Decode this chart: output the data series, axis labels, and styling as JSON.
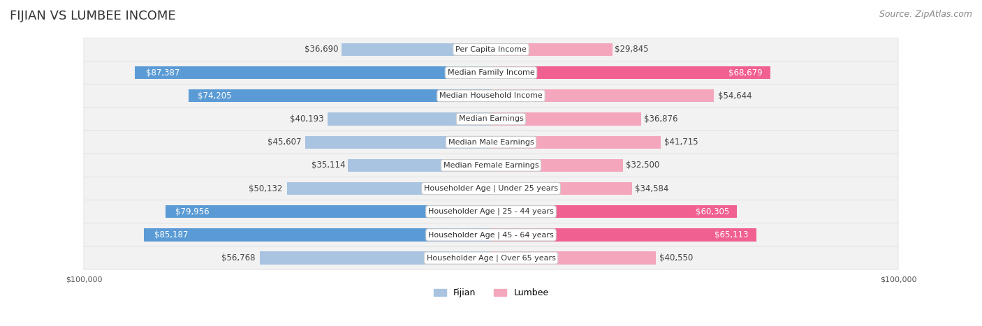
{
  "title": "FIJIAN VS LUMBEE INCOME",
  "source": "Source: ZipAtlas.com",
  "categories": [
    "Per Capita Income",
    "Median Family Income",
    "Median Household Income",
    "Median Earnings",
    "Median Male Earnings",
    "Median Female Earnings",
    "Householder Age | Under 25 years",
    "Householder Age | 25 - 44 years",
    "Householder Age | 45 - 64 years",
    "Householder Age | Over 65 years"
  ],
  "fijian_values": [
    36690,
    87387,
    74205,
    40193,
    45607,
    35114,
    50132,
    79956,
    85187,
    56768
  ],
  "lumbee_values": [
    29845,
    68679,
    54644,
    36876,
    41715,
    32500,
    34584,
    60305,
    65113,
    40550
  ],
  "max_value": 100000,
  "fijian_color_light": "#a8c4e0",
  "fijian_color_dark": "#5b9bd5",
  "lumbee_color_light": "#f4a7bc",
  "lumbee_color_dark": "#f06090",
  "fijian_threshold": 70000,
  "lumbee_threshold": 60000,
  "bg_row_color": "#f2f2f2",
  "bg_chart_color": "#ffffff",
  "label_center_bg": "#ffffff",
  "label_center_border": "#cccccc",
  "title_fontsize": 13,
  "source_fontsize": 9,
  "value_fontsize": 8.5,
  "category_fontsize": 8,
  "axis_label_fontsize": 8,
  "legend_fontsize": 9,
  "bar_height": 0.55,
  "x_min": -100000,
  "x_max": 100000
}
